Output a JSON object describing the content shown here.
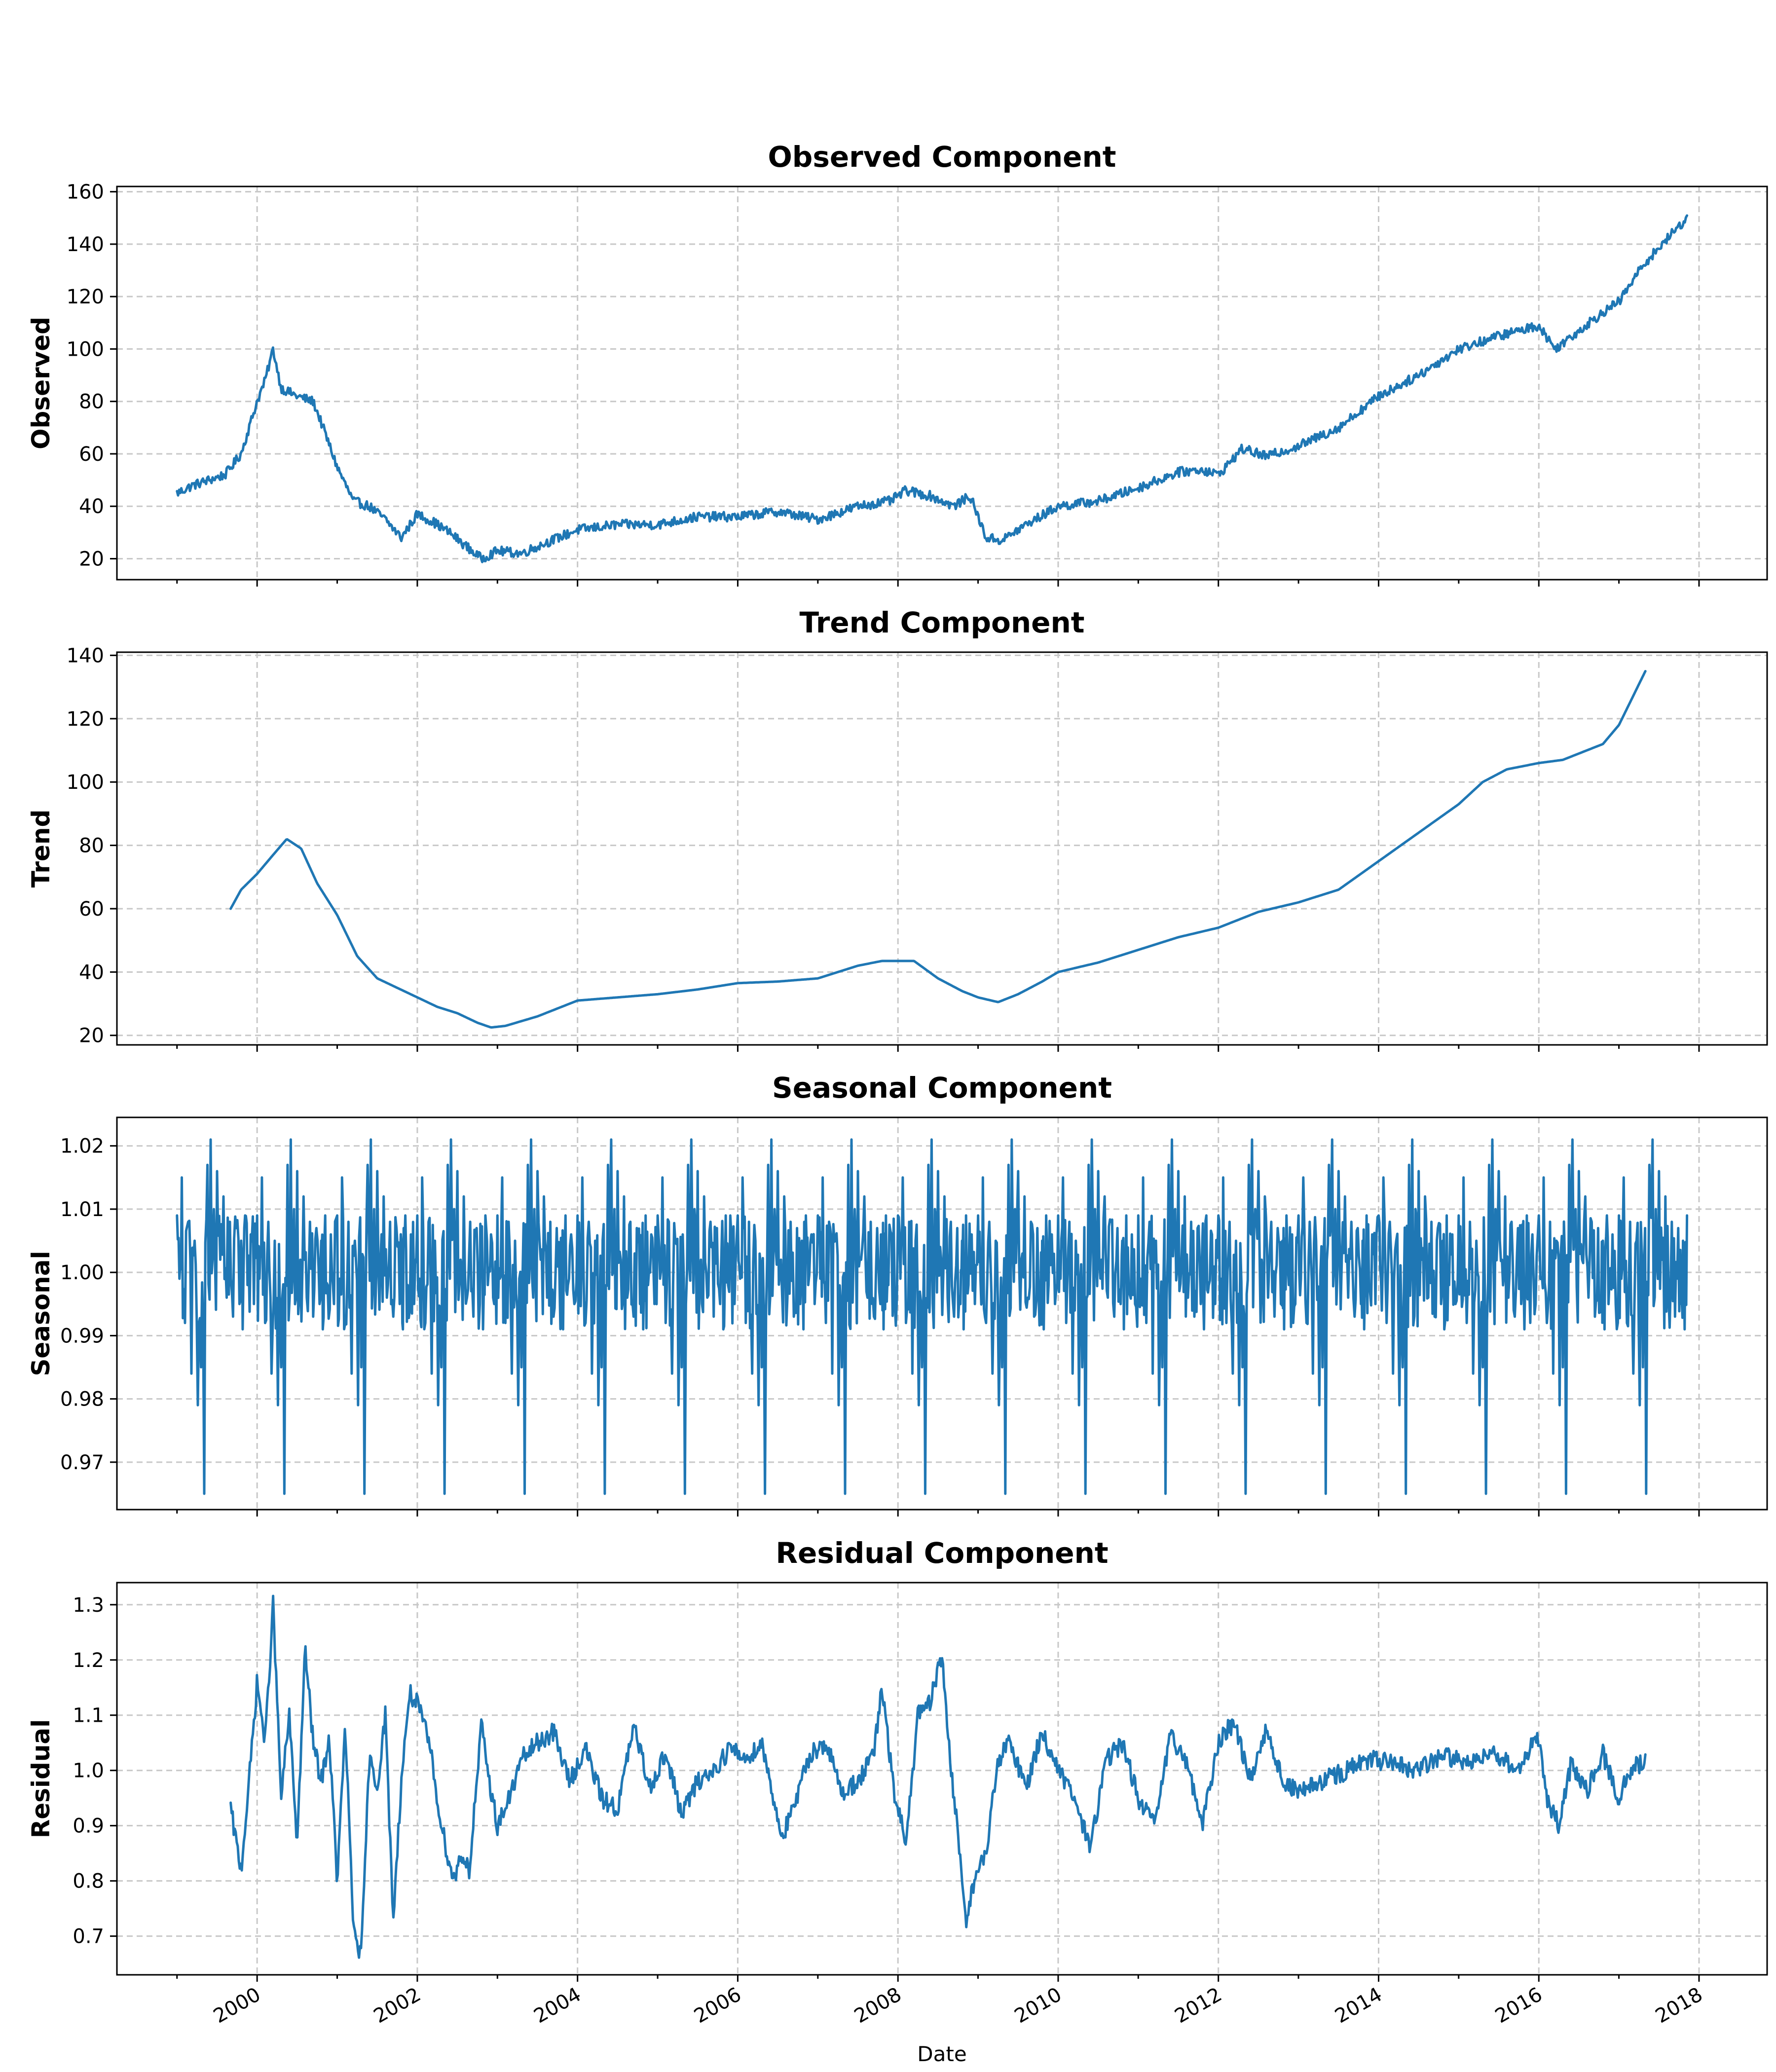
{
  "figure": {
    "xlabel": "Date",
    "x_tick_labels": [
      "2000",
      "2002",
      "2004",
      "2006",
      "2008",
      "2010",
      "2012",
      "2014",
      "2016",
      "2018"
    ],
    "line_color": "#1f77b4",
    "grid_color": "#c8c8c8"
  },
  "chart_data": [
    {
      "type": "line",
      "title": "Observed Component",
      "ylabel": "Observed",
      "grid": true,
      "xlim": [
        1998.25,
        2018.85
      ],
      "ylim": [
        12,
        162
      ],
      "y_ticks": [
        20,
        40,
        60,
        80,
        100,
        120,
        140,
        160
      ],
      "y_tick_labels": [
        "20",
        "40",
        "60",
        "80",
        "100",
        "120",
        "140",
        "160"
      ],
      "x_tick_labels": [
        "2000",
        "2002",
        "2004",
        "2006",
        "2008",
        "2010",
        "2012",
        "2014",
        "2016",
        "2018"
      ],
      "series": [
        {
          "x": [
            1999.0,
            1999.2,
            1999.4,
            1999.6,
            1999.8,
            2000.0,
            2000.1,
            2000.2,
            2000.3,
            2000.5,
            2000.7,
            2000.8,
            2001.0,
            2001.2,
            2001.4,
            2001.6,
            2001.8,
            2002.0,
            2002.2,
            2002.4,
            2002.6,
            2002.8,
            2003.0,
            2003.3,
            2003.6,
            2004.0,
            2004.5,
            2005.0,
            2005.5,
            2006.0,
            2006.5,
            2007.0,
            2007.5,
            2007.9,
            2008.1,
            2008.4,
            2008.7,
            2008.9,
            2009.1,
            2009.3,
            2009.6,
            2010.0,
            2010.5,
            2011.0,
            2011.5,
            2011.8,
            2012.0,
            2012.3,
            2012.6,
            2013.0,
            2013.5,
            2014.0,
            2014.5,
            2015.0,
            2015.5,
            2016.0,
            2016.2,
            2016.5,
            2016.8,
            2017.0,
            2017.3,
            2017.6,
            2017.85
          ],
          "values": [
            45,
            48,
            50,
            52,
            60,
            80,
            88,
            100,
            85,
            82,
            80,
            72,
            55,
            42,
            40,
            35,
            28,
            37,
            34,
            30,
            25,
            20,
            23,
            22,
            26,
            31,
            33,
            33,
            36,
            36,
            38,
            35,
            40,
            42,
            46,
            44,
            40,
            44,
            28,
            27,
            33,
            40,
            42,
            47,
            53,
            54,
            52,
            62,
            59,
            63,
            70,
            82,
            90,
            100,
            105,
            109,
            100,
            107,
            114,
            118,
            132,
            142,
            150
          ]
        }
      ]
    },
    {
      "type": "line",
      "title": "Trend Component",
      "ylabel": "Trend",
      "grid": true,
      "xlim": [
        1998.25,
        2018.85
      ],
      "ylim": [
        17,
        141
      ],
      "y_ticks": [
        20,
        40,
        60,
        80,
        100,
        120,
        140
      ],
      "y_tick_labels": [
        "20",
        "40",
        "60",
        "80",
        "100",
        "120",
        "140"
      ],
      "x_tick_labels": [
        "2000",
        "2002",
        "2004",
        "2006",
        "2008",
        "2010",
        "2012",
        "2014",
        "2016",
        "2018"
      ],
      "series": [
        {
          "x": [
            1999.67,
            1999.8,
            2000.0,
            2000.2,
            2000.37,
            2000.55,
            2000.75,
            2001.0,
            2001.25,
            2001.5,
            2001.75,
            2002.0,
            2002.25,
            2002.5,
            2002.75,
            2002.92,
            2003.1,
            2003.5,
            2004.0,
            2004.5,
            2005.0,
            2005.5,
            2006.0,
            2006.5,
            2007.0,
            2007.5,
            2007.8,
            2008.0,
            2008.2,
            2008.5,
            2008.8,
            2009.0,
            2009.25,
            2009.5,
            2009.8,
            2010.0,
            2010.5,
            2011.0,
            2011.5,
            2012.0,
            2012.5,
            2013.0,
            2013.5,
            2014.0,
            2014.5,
            2015.0,
            2015.3,
            2015.6,
            2016.0,
            2016.3,
            2016.5,
            2016.8,
            2017.0,
            2017.33
          ],
          "values": [
            60,
            66,
            71,
            77,
            82,
            79,
            68,
            58,
            45,
            38,
            35,
            32,
            29,
            27,
            24,
            22.5,
            23,
            26,
            31,
            32,
            33,
            34.5,
            36.5,
            37,
            38,
            42,
            43.5,
            43.5,
            43.5,
            38,
            34,
            32,
            30.5,
            33,
            37,
            40,
            43,
            47,
            51,
            54,
            59,
            62,
            66,
            75,
            84,
            93,
            100,
            104,
            106,
            107,
            109,
            112,
            118,
            135
          ]
        }
      ]
    },
    {
      "type": "line",
      "title": "Seasonal Component",
      "ylabel": "Seasonal",
      "grid": true,
      "xlim": [
        1998.25,
        2018.85
      ],
      "ylim": [
        0.9625,
        1.0245
      ],
      "y_ticks": [
        0.97,
        0.98,
        0.99,
        1.0,
        1.01,
        1.02
      ],
      "y_tick_labels": [
        "0.97",
        "0.98",
        "0.99",
        "1.00",
        "1.01",
        "1.02"
      ],
      "x_tick_labels": [
        "2000",
        "2002",
        "2004",
        "2006",
        "2008",
        "2010",
        "2012",
        "2014",
        "2016",
        "2018"
      ],
      "series": [
        {
          "period_years": 1.0,
          "start_year": 1999.0,
          "end_year": 2017.85,
          "cycle_x": [
            0.0,
            0.03,
            0.06,
            0.1,
            0.14,
            0.18,
            0.22,
            0.26,
            0.3,
            0.34,
            0.38,
            0.42,
            0.46,
            0.5,
            0.54,
            0.58,
            0.62,
            0.66,
            0.7,
            0.74,
            0.78,
            0.8,
            0.82,
            0.85,
            0.88,
            0.92,
            0.96
          ],
          "cycle_values": [
            1.009,
            0.999,
            1.015,
            0.992,
            1.008,
            0.984,
            1.005,
            0.979,
            0.985,
            0.965,
            1.017,
            1.021,
            1.01,
            1.016,
            1.002,
            1.012,
            0.996,
            1.008,
            0.993,
            1.007,
            0.995,
            1.005,
            0.991,
            1.009,
            0.998,
            1.006,
            0.995
          ]
        }
      ]
    },
    {
      "type": "line",
      "title": "Residual Component",
      "ylabel": "Residual",
      "grid": true,
      "xlim": [
        1998.25,
        2018.85
      ],
      "ylim": [
        0.63,
        1.34
      ],
      "y_ticks": [
        0.7,
        0.8,
        0.9,
        1.0,
        1.1,
        1.2,
        1.3
      ],
      "y_tick_labels": [
        "0.7",
        "0.8",
        "0.9",
        "1.0",
        "1.1",
        "1.2",
        "1.3"
      ],
      "x_tick_labels": [
        "2000",
        "2002",
        "2004",
        "2006",
        "2008",
        "2010",
        "2012",
        "2014",
        "2016",
        "2018"
      ],
      "series": [
        {
          "x": [
            1999.67,
            1999.75,
            1999.8,
            1999.9,
            2000.0,
            2000.1,
            2000.2,
            2000.3,
            2000.4,
            2000.5,
            2000.6,
            2000.7,
            2000.8,
            2000.9,
            2001.0,
            2001.1,
            2001.2,
            2001.3,
            2001.4,
            2001.5,
            2001.6,
            2001.7,
            2001.8,
            2001.9,
            2002.0,
            2002.15,
            2002.3,
            2002.45,
            2002.55,
            2002.65,
            2002.8,
            2002.9,
            2003.0,
            2003.15,
            2003.3,
            2003.5,
            2003.7,
            2003.9,
            2004.1,
            2004.3,
            2004.5,
            2004.7,
            2004.9,
            2005.1,
            2005.3,
            2005.5,
            2005.7,
            2005.9,
            2006.1,
            2006.3,
            2006.55,
            2006.7,
            2006.9,
            2007.1,
            2007.3,
            2007.5,
            2007.7,
            2007.8,
            2007.95,
            2008.1,
            2008.25,
            2008.4,
            2008.55,
            2008.65,
            2008.75,
            2008.85,
            2008.95,
            2009.1,
            2009.25,
            2009.4,
            2009.6,
            2009.8,
            2010.0,
            2010.2,
            2010.4,
            2010.6,
            2010.8,
            2011.0,
            2011.2,
            2011.4,
            2011.6,
            2011.8,
            2012.0,
            2012.2,
            2012.4,
            2012.6,
            2012.8,
            2013.0,
            2013.3,
            2013.6,
            2013.9,
            2014.2,
            2014.5,
            2014.8,
            2015.1,
            2015.4,
            2015.7,
            2016.0,
            2016.1,
            2016.25,
            2016.4,
            2016.6,
            2016.8,
            2017.0,
            2017.15,
            2017.33
          ],
          "values": [
            0.93,
            0.86,
            0.82,
            0.98,
            1.16,
            1.05,
            1.3,
            0.95,
            1.1,
            0.87,
            1.22,
            1.05,
            0.98,
            1.06,
            0.8,
            1.08,
            0.72,
            0.66,
            1.02,
            0.97,
            1.1,
            0.73,
            0.98,
            1.14,
            1.12,
            1.05,
            0.9,
            0.8,
            0.85,
            0.82,
            1.08,
            0.98,
            0.9,
            0.95,
            1.02,
            1.05,
            1.07,
            0.98,
            1.04,
            0.95,
            0.93,
            1.08,
            0.97,
            1.03,
            0.92,
            0.98,
            1.0,
            1.04,
            1.02,
            1.05,
            0.88,
            0.93,
            1.03,
            1.05,
            0.96,
            0.98,
            1.03,
            1.15,
            0.96,
            0.87,
            1.1,
            1.12,
            1.21,
            1.02,
            0.88,
            0.73,
            0.8,
            0.85,
            1.02,
            1.05,
            0.97,
            1.07,
            1.0,
            0.95,
            0.86,
            1.02,
            1.05,
            0.95,
            0.9,
            1.06,
            1.02,
            0.9,
            1.05,
            1.09,
            0.98,
            1.08,
            0.98,
            0.96,
            0.98,
            1.0,
            1.02,
            1.01,
            1.0,
            1.03,
            1.01,
            1.04,
            1.0,
            1.06,
            0.95,
            0.9,
            1.01,
            0.96,
            1.03,
            0.95,
            1.0,
            1.02
          ]
        }
      ]
    }
  ]
}
